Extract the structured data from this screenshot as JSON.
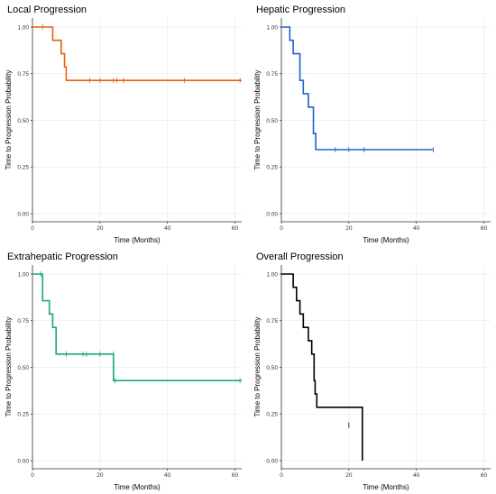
{
  "chart_data": [
    {
      "type": "line",
      "step": true,
      "title": "Local Progression",
      "xlabel": "Time (Months)",
      "ylabel": "Time to Progression Probability",
      "xlim": [
        0,
        62
      ],
      "ylim": [
        0,
        1
      ],
      "xticks": [
        "0",
        "20",
        "40",
        "60"
      ],
      "yticks": [
        "0.00",
        "0.25",
        "0.50",
        "0.75",
        "1.00"
      ],
      "grid": true,
      "color": "#E8600E",
      "series": [
        {
          "x": [
            0,
            6,
            8.5,
            9.5,
            10,
            62
          ],
          "y": [
            1.0,
            0.929,
            0.857,
            0.786,
            0.714,
            0.714
          ],
          "censored": [
            [
              3,
              1.0
            ],
            [
              17,
              0.714
            ],
            [
              20,
              0.714
            ],
            [
              24,
              0.714
            ],
            [
              25,
              0.714
            ],
            [
              27,
              0.714
            ],
            [
              45,
              0.714
            ],
            [
              61.5,
              0.714
            ]
          ]
        }
      ]
    },
    {
      "type": "line",
      "step": true,
      "title": "Hepatic Progression",
      "xlabel": "Time (Months)",
      "ylabel": "Time to Progression Probability",
      "xlim": [
        0,
        62
      ],
      "ylim": [
        0,
        1
      ],
      "xticks": [
        "0",
        "20",
        "40",
        "60"
      ],
      "yticks": [
        "0.00",
        "0.25",
        "0.50",
        "0.75",
        "1.00"
      ],
      "grid": true,
      "color": "#2060D0",
      "series": [
        {
          "x": [
            0,
            2.5,
            3.5,
            5.5,
            6.5,
            8,
            9.5,
            10.2,
            45
          ],
          "y": [
            1.0,
            0.929,
            0.857,
            0.714,
            0.643,
            0.571,
            0.429,
            0.343,
            0.343
          ],
          "censored": [
            [
              5.5,
              0.786
            ],
            [
              16,
              0.343
            ],
            [
              20,
              0.343
            ],
            [
              24.5,
              0.343
            ],
            [
              45,
              0.343
            ]
          ]
        }
      ]
    },
    {
      "type": "line",
      "step": true,
      "title": "Extrahepatic Progression",
      "xlabel": "Time (Months)",
      "ylabel": "Time to Progression Probability",
      "xlim": [
        0,
        62
      ],
      "ylim": [
        0,
        1
      ],
      "xticks": [
        "0",
        "20",
        "40",
        "60"
      ],
      "yticks": [
        "0.00",
        "0.25",
        "0.50",
        "0.75",
        "1.00"
      ],
      "grid": true,
      "color": "#1AA383",
      "series": [
        {
          "x": [
            0,
            3,
            5,
            6,
            7,
            24,
            62
          ],
          "y": [
            1.0,
            0.857,
            0.786,
            0.714,
            0.571,
            0.429,
            0.429
          ],
          "censored": [
            [
              2.5,
              1.0
            ],
            [
              10,
              0.571
            ],
            [
              15,
              0.571
            ],
            [
              16,
              0.571
            ],
            [
              20,
              0.571
            ],
            [
              24,
              0.571
            ],
            [
              24.5,
              0.429
            ],
            [
              61.5,
              0.429
            ]
          ]
        }
      ]
    },
    {
      "type": "line",
      "step": true,
      "title": "Overall Progression",
      "xlabel": "Time (Months)",
      "ylabel": "Time to Progression Probability",
      "xlim": [
        0,
        62
      ],
      "ylim": [
        0,
        1
      ],
      "xticks": [
        "0",
        "20",
        "40",
        "60"
      ],
      "yticks": [
        "0.00",
        "0.25",
        "0.50",
        "0.75",
        "1.00"
      ],
      "grid": true,
      "color": "#000000",
      "series": [
        {
          "x": [
            0,
            3.5,
            4.5,
            5.5,
            6.5,
            8,
            9,
            9.7,
            10,
            10.5,
            24,
            24
          ],
          "y": [
            1.0,
            0.929,
            0.857,
            0.786,
            0.714,
            0.643,
            0.571,
            0.429,
            0.357,
            0.286,
            0.19,
            0.0
          ],
          "censored": [
            [
              20,
              0.19
            ]
          ]
        }
      ]
    }
  ]
}
